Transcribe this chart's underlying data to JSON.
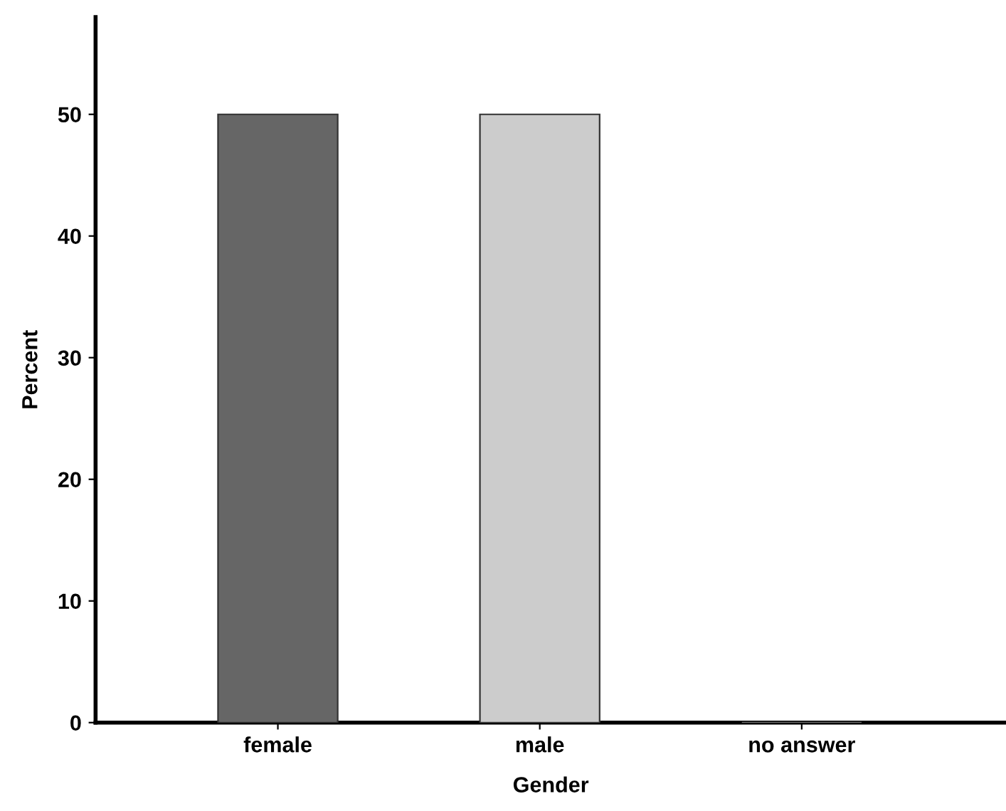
{
  "chart_data": {
    "type": "bar",
    "xlabel": "Gender",
    "ylabel": "Percent",
    "categories": [
      "female",
      "male",
      "no answer"
    ],
    "values": [
      50,
      50,
      0
    ],
    "colors": [
      "#666666",
      "#cccccc",
      "#999999"
    ],
    "ylim": [
      0,
      58
    ],
    "yticks": [
      0,
      10,
      20,
      30,
      40,
      50
    ],
    "grid": false,
    "legend": false
  }
}
